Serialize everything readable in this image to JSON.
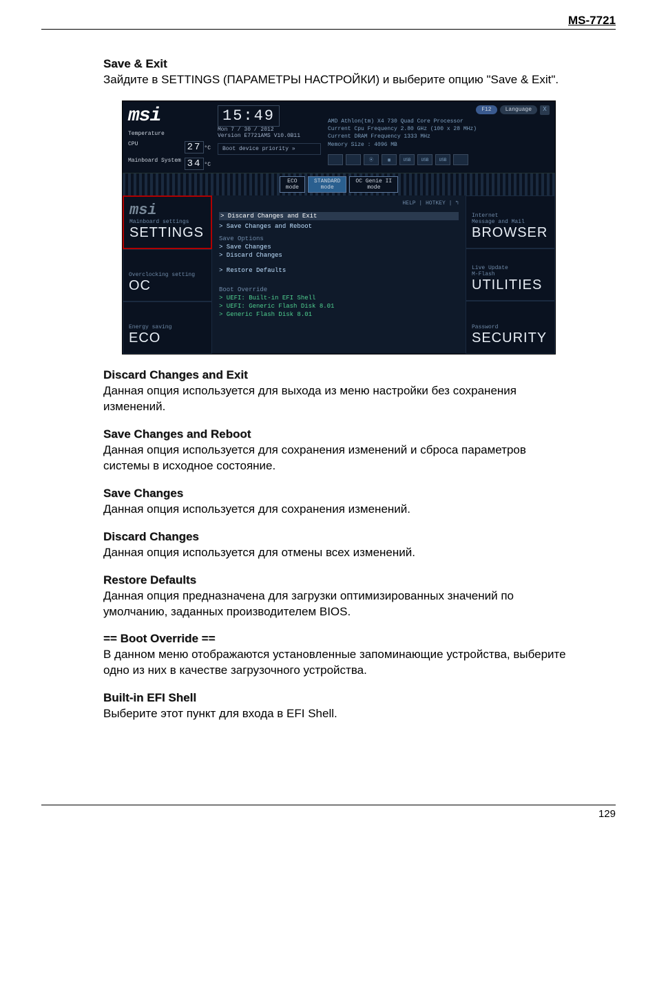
{
  "page_header": "MS-7721",
  "page_number": "129",
  "intro": {
    "heading": "Save & Exit",
    "text": "Зайдите в SETTINGS (ПАРАМЕТРЫ НАСТРОЙКИ) и выберите опцию \"Save & Exit\"."
  },
  "sections": [
    {
      "heading": "Discard Changes and Exit",
      "text": "Данная опция используется для выхода из меню настройки без сохранения изменений."
    },
    {
      "heading": "Save Changes and Reboot",
      "text": "Данная опция используется для сохранения изменений и сброса параметров системы в исходное состояние."
    },
    {
      "heading": "Save Changes",
      "text": "Данная опция используется для сохранения изменений."
    },
    {
      "heading": "Discard Changes",
      "text": "Данная опция используется для отмены всех изменений."
    },
    {
      "heading": "Restore Defaults",
      "text": "Данная опция предназначена для загрузки оптимизированных значений по умолчанию, заданных производителем BIOS."
    },
    {
      "heading": "== Boot Override ==",
      "text": "В данном меню отображаются установленные запоминающие устройства, выберите одно из них в качестве загрузочного устройства."
    },
    {
      "heading": "Built-in EFI Shell",
      "text": "Выберите этот пункт для входа в EFI Shell."
    }
  ],
  "bios": {
    "brand": "msi",
    "language_btn": "Language",
    "close_btn": "X",
    "f12_label": "F12",
    "clock": "15:49",
    "date": "Mon  7 / 30 / 2012",
    "version": "Version E7721AMS V10.0B11",
    "temperature_label": "Temperature",
    "cpu_label": "CPU",
    "cpu_temp": "27",
    "sys_label": "Mainboard System",
    "sys_temp": "34",
    "temp_unit": "°C",
    "boot_priority": "Boot device priority  »",
    "sysinfo": [
      "AMD Athlon(tm) X4 730 Quad Core Processor",
      "Current Cpu Frequency 2.80 GHz (100 x 28 MHz)",
      "Current DRAM Frequency 1333 MHz",
      "Memory Size : 4096 MB"
    ],
    "dev_icons": [
      "",
      "",
      "⦿",
      "▦",
      "USB",
      "USB",
      "USB",
      ""
    ],
    "modes": [
      {
        "top": "ECO",
        "bottom": "mode",
        "selected": false
      },
      {
        "top": "STANDARD",
        "bottom": "mode",
        "selected": true
      },
      {
        "top": "OC Genie II",
        "bottom": "mode",
        "selected": false
      }
    ],
    "help_hotkey": "HELP | HOTKEY | ↰",
    "left_tiles": [
      {
        "logo": "msi",
        "sub": "Mainboard settings",
        "main": "SETTINGS",
        "selected": true
      },
      {
        "logo": "",
        "sub": "Overclocking setting",
        "main": "OC",
        "selected": false
      },
      {
        "logo": "",
        "sub": "Energy saving",
        "main": "ECO",
        "selected": false
      }
    ],
    "right_tiles": [
      {
        "sub": "Internet\nMessage and Mail",
        "main": "BROWSER"
      },
      {
        "sub": "Live Update\nM-Flash",
        "main": "UTILITIES"
      },
      {
        "sub": "Password",
        "main": "SECURITY"
      }
    ],
    "center_menu": [
      {
        "type": "item",
        "label": "> Discard Changes and Exit",
        "cls": "highlight"
      },
      {
        "type": "item",
        "label": "> Save Changes and Reboot",
        "cls": ""
      },
      {
        "type": "group",
        "label": "Save Options"
      },
      {
        "type": "item",
        "label": "> Save Changes",
        "cls": ""
      },
      {
        "type": "item",
        "label": "> Discard Changes",
        "cls": ""
      },
      {
        "type": "spacer"
      },
      {
        "type": "item",
        "label": "> Restore Defaults",
        "cls": ""
      },
      {
        "type": "spacer"
      },
      {
        "type": "group",
        "label": "Boot Override"
      },
      {
        "type": "item",
        "label": "> UEFI: Built-in EFI Shell",
        "cls": "green"
      },
      {
        "type": "item",
        "label": "> UEFI: Generic Flash Disk 8.01",
        "cls": "green"
      },
      {
        "type": "item",
        "label": "> Generic Flash Disk 8.01",
        "cls": "green"
      }
    ]
  }
}
